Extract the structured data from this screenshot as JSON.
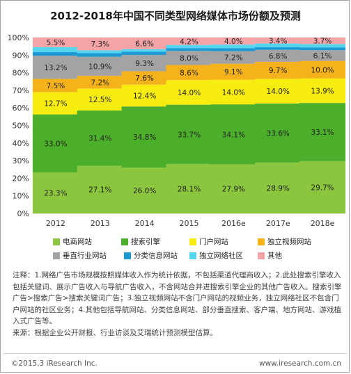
{
  "title": "2012-2018年中国不同类型网络媒体市场份额及预测",
  "chart_data": {
    "type": "bar",
    "stacked": true,
    "categories": [
      "2012",
      "2013",
      "2014",
      "2015",
      "2016e",
      "2017e",
      "2018e"
    ],
    "ylim": [
      0,
      100
    ],
    "yticks": [
      "0%",
      "10%",
      "20%",
      "30%",
      "40%",
      "50%",
      "60%",
      "70%",
      "80%",
      "90%",
      "100%"
    ],
    "series": [
      {
        "name": "电商网站",
        "color": "#8cc63f",
        "values": [
          23.3,
          27.1,
          26.0,
          28.1,
          27.9,
          28.9,
          29.7
        ]
      },
      {
        "name": "搜索引擎",
        "color": "#4caf2c",
        "values": [
          33.0,
          31.4,
          34.8,
          33.7,
          34.1,
          33.6,
          33.1
        ]
      },
      {
        "name": "门户网站",
        "color": "#f7ec0f",
        "values": [
          12.7,
          12.5,
          12.4,
          14.0,
          14.0,
          14.0,
          13.9
        ]
      },
      {
        "name": "独立视频网站",
        "color": "#f5b21b",
        "values": [
          7.5,
          7.2,
          7.6,
          8.6,
          9.1,
          9.7,
          10.0
        ]
      },
      {
        "name": "垂直行业网站",
        "color": "#a3a3a3",
        "values": [
          13.2,
          10.9,
          9.3,
          8.0,
          7.2,
          6.8,
          6.1
        ]
      },
      {
        "name": "分类信息网站",
        "color": "#1d9ad6",
        "values": [
          2.0,
          2.0,
          1.8,
          1.6,
          1.7,
          1.6,
          1.6
        ]
      },
      {
        "name": "独立网络社区",
        "color": "#55d6ef",
        "values": [
          2.8,
          1.6,
          1.5,
          1.8,
          2.0,
          2.0,
          1.9
        ]
      },
      {
        "name": "其他",
        "color": "#f4a3a6",
        "values": [
          5.5,
          7.3,
          6.6,
          4.2,
          4.0,
          3.4,
          3.7
        ]
      }
    ],
    "labeled_series": [
      "电商网站",
      "搜索引擎",
      "门户网站",
      "独立视频网站",
      "垂直行业网站",
      "其他"
    ],
    "grid": true,
    "legend_position": "bottom"
  },
  "notes": [
    "注释：1.网络广告市场规模按照媒体收入作为统计依据，不包括渠道代理商收入；2.此处搜索引擎收入包括关键词、展示广告收入与导航广告收入，不含网站合并进搜索引擎企业的其他广告收入。搜索引擎广告>搜索广告>搜索关键词广告；3.独立视频网站不含门户网站的视频业务，独立网络社区不包含门户网站的社区业务；4.其他包括导航网站、分类信息网站、部分垂直搜索、客户端、地方网站、游戏植入式广告等。",
    "来源：根据企业公开财报、行业访谈及艾瑞统计预测模型估算。"
  ],
  "footer": {
    "left": "©2015.3 iResearch Inc.",
    "right": "www.iresearch.com.cn"
  }
}
